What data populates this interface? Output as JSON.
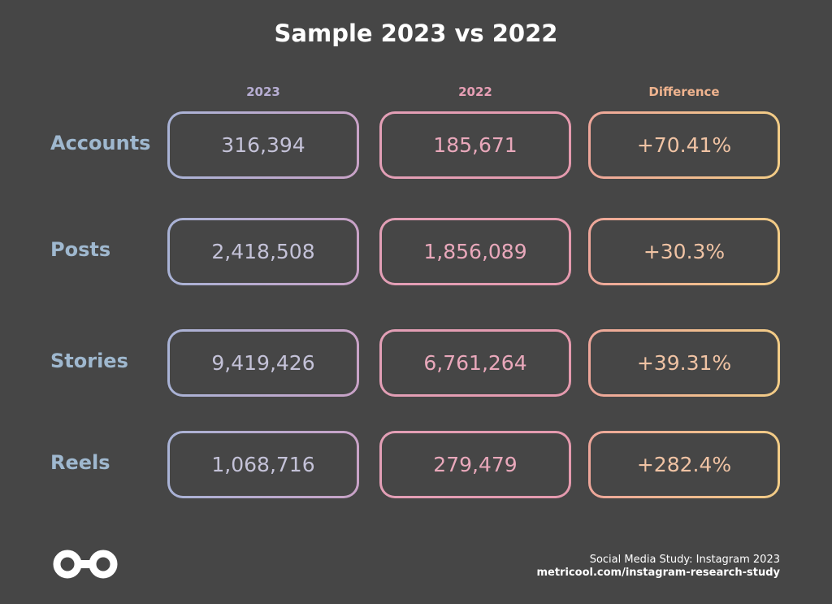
{
  "chart_data": {
    "type": "table",
    "title": "Sample 2023 vs 2022",
    "columns": [
      "2023",
      "2022",
      "Difference"
    ],
    "rows": [
      {
        "label": "Accounts",
        "values": [
          "316,394",
          "185,671",
          "+70.41%"
        ]
      },
      {
        "label": "Posts",
        "values": [
          "2,418,508",
          "1,856,089",
          "+30.3%"
        ]
      },
      {
        "label": "Stories",
        "values": [
          "9,419,426",
          "6,761,264",
          "+39.31%"
        ]
      },
      {
        "label": "Reels",
        "values": [
          "1,068,716",
          "279,479",
          "+282.4%"
        ]
      }
    ]
  },
  "footer": {
    "study": "Social Media Study: Instagram 2023",
    "url": "metricool.com/instagram-research-study"
  },
  "colors": {
    "background": "#464646",
    "row_label": "#9fb8cf",
    "head_2023": "#b7aed3",
    "head_2022": "#e79fb5",
    "head_diff": "#f0b48f"
  },
  "icons": {
    "logo": "metricool-logo-icon"
  }
}
